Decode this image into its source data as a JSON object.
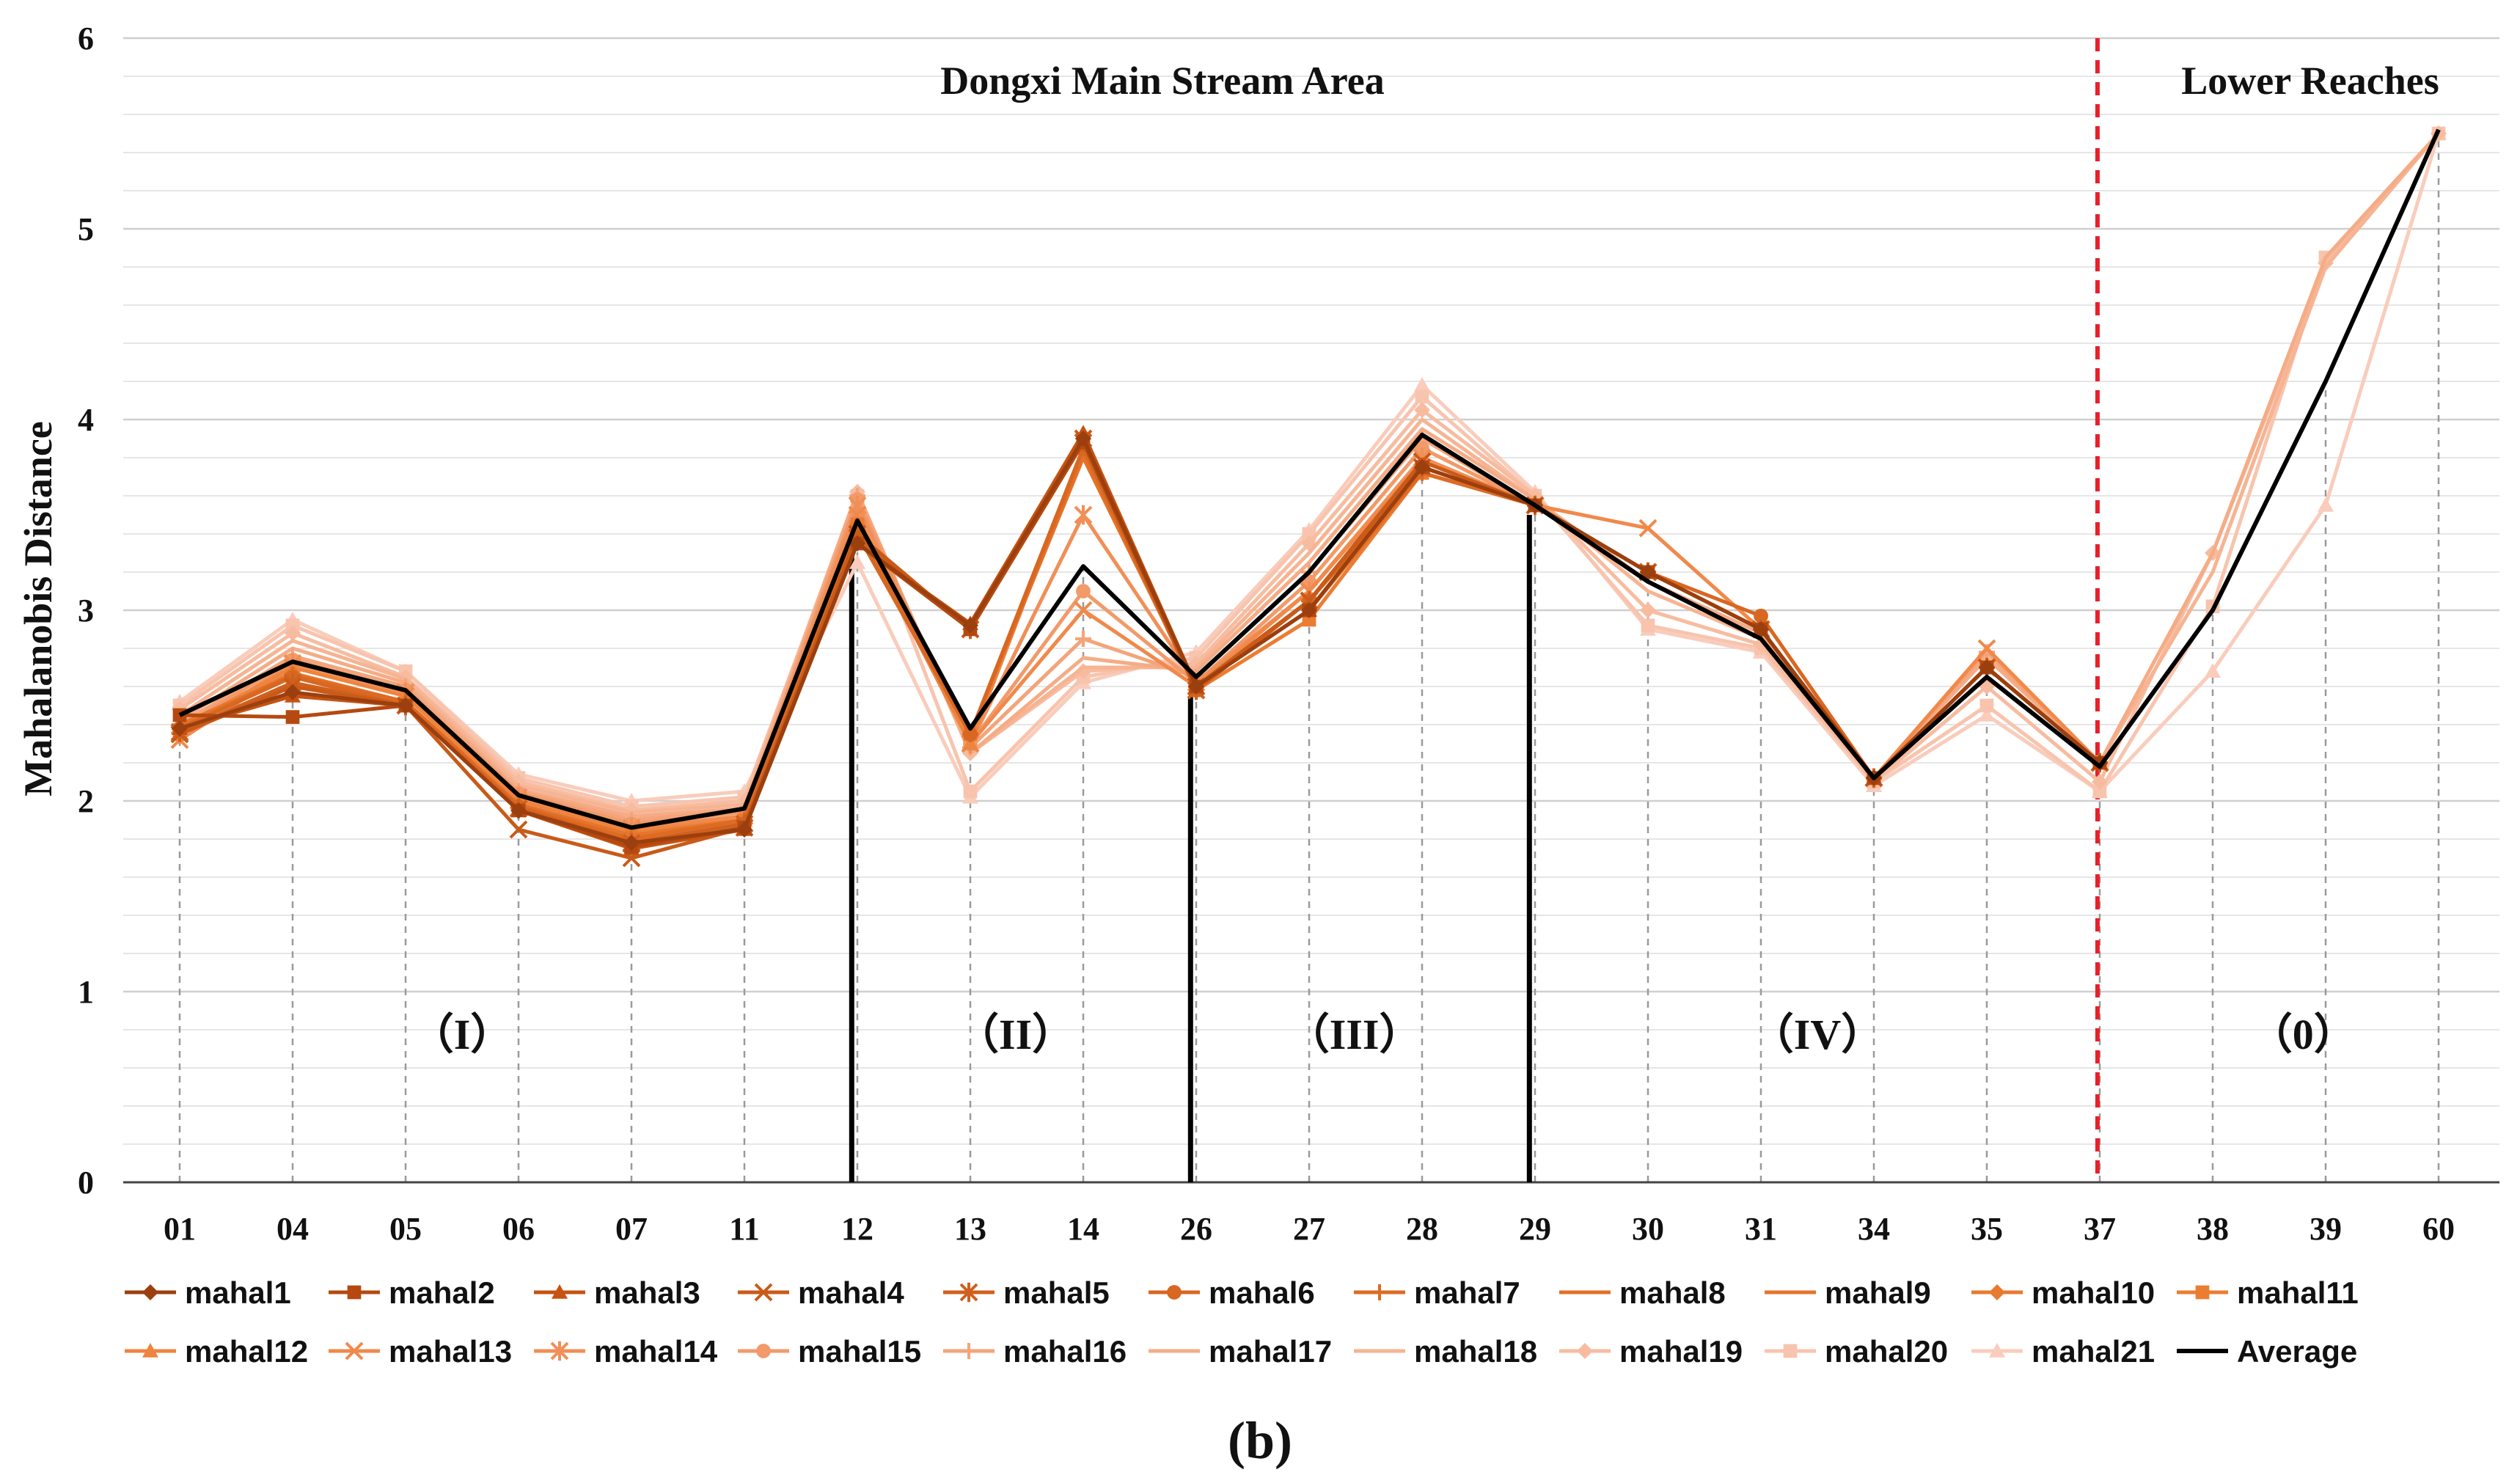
{
  "chart_data": {
    "type": "line",
    "ylabel": "Mahalanobis Distance",
    "ylim": [
      0,
      6
    ],
    "yticks": [
      "0",
      "1",
      "2",
      "3",
      "4",
      "5",
      "6"
    ],
    "categories": [
      "01",
      "04",
      "05",
      "06",
      "07",
      "11",
      "12",
      "13",
      "14",
      "26",
      "27",
      "28",
      "29",
      "30",
      "31",
      "34",
      "35",
      "37",
      "38",
      "39",
      "60"
    ],
    "region_labels": [
      "Dongxi Main Stream Area",
      "Lower Reaches"
    ],
    "zone_labels": [
      {
        "label": "（I）",
        "at": 2.5
      },
      {
        "label": "（II）",
        "at": 7.4
      },
      {
        "label": "（III）",
        "at": 10.4
      },
      {
        "label": "（IV）",
        "at": 14.5
      },
      {
        "label": "（0）",
        "at": 18.8
      }
    ],
    "dividers": [
      {
        "after_index": 6,
        "from": 0,
        "to": 3.45
      },
      {
        "after_index": 9,
        "from": 0,
        "to": 2.55
      },
      {
        "after_index": 12,
        "from": 0,
        "to": 3.5
      }
    ],
    "red_divider_after_index": 17,
    "caption": "(b)",
    "series": [
      {
        "name": "mahal1",
        "color": "#9b3f0f",
        "marker": "diamond",
        "values": [
          2.38,
          2.57,
          2.5,
          1.95,
          1.78,
          1.85,
          3.35,
          2.92,
          3.9,
          2.6,
          3.0,
          3.75,
          3.55,
          3.2,
          2.9,
          2.12,
          2.7,
          2.2,
          null,
          null,
          null
        ]
      },
      {
        "name": "mahal2",
        "color": "#b5490f",
        "marker": "square",
        "values": [
          2.45,
          2.44,
          2.5,
          1.95,
          1.76,
          1.86,
          3.35,
          2.9,
          3.88,
          2.6,
          3.0,
          3.75,
          3.55,
          3.2,
          2.9,
          2.12,
          2.7,
          2.2,
          null,
          null,
          null
        ]
      },
      {
        "name": "mahal3",
        "color": "#c65311",
        "marker": "triangle",
        "values": [
          2.38,
          2.55,
          2.5,
          1.95,
          1.75,
          1.85,
          3.35,
          2.93,
          3.93,
          2.6,
          3.0,
          3.75,
          3.55,
          3.2,
          2.9,
          2.12,
          2.7,
          2.2,
          null,
          null,
          null
        ]
      },
      {
        "name": "mahal4",
        "color": "#c95a18",
        "marker": "x",
        "values": [
          2.35,
          2.6,
          2.5,
          1.85,
          1.7,
          1.86,
          3.4,
          2.9,
          3.9,
          2.6,
          3.05,
          3.78,
          3.55,
          3.2,
          2.9,
          2.12,
          2.7,
          2.2,
          null,
          null,
          null
        ]
      },
      {
        "name": "mahal5",
        "color": "#d0601d",
        "marker": "star",
        "values": [
          2.36,
          2.62,
          2.5,
          1.96,
          1.78,
          1.88,
          3.38,
          2.9,
          3.88,
          2.58,
          3.05,
          3.75,
          3.55,
          3.2,
          2.9,
          2.12,
          2.7,
          2.2,
          null,
          null,
          null
        ]
      },
      {
        "name": "mahal6",
        "color": "#d86722",
        "marker": "circle",
        "values": [
          2.38,
          2.65,
          2.5,
          1.97,
          1.78,
          1.88,
          3.4,
          2.35,
          3.85,
          2.58,
          3.05,
          3.75,
          3.55,
          3.2,
          2.97,
          2.12,
          2.7,
          2.2,
          null,
          null,
          null
        ]
      },
      {
        "name": "mahal7",
        "color": "#dd6b24",
        "marker": "plus",
        "values": [
          2.38,
          2.66,
          2.52,
          1.97,
          1.8,
          1.9,
          3.42,
          2.35,
          3.85,
          2.6,
          3.05,
          3.72,
          3.55,
          3.2,
          2.9,
          2.12,
          2.7,
          2.2,
          null,
          null,
          null
        ]
      },
      {
        "name": "mahal8",
        "color": "#e27028",
        "marker": "none",
        "values": [
          2.38,
          2.66,
          2.52,
          1.98,
          1.8,
          1.9,
          3.42,
          2.35,
          3.82,
          2.6,
          3.0,
          3.72,
          3.55,
          3.2,
          2.9,
          2.12,
          2.7,
          2.2,
          null,
          null,
          null
        ]
      },
      {
        "name": "mahal9",
        "color": "#e5752d",
        "marker": "none",
        "values": [
          2.4,
          2.66,
          2.52,
          1.98,
          1.82,
          1.9,
          3.45,
          2.35,
          3.8,
          2.6,
          3.0,
          3.72,
          3.55,
          3.2,
          2.9,
          2.12,
          2.7,
          2.2,
          null,
          null,
          null
        ]
      },
      {
        "name": "mahal10",
        "color": "#e87a2f",
        "marker": "diamond",
        "values": [
          2.38,
          2.67,
          2.52,
          1.98,
          1.82,
          1.9,
          3.45,
          2.35,
          3.85,
          2.6,
          3.0,
          3.72,
          3.55,
          3.2,
          2.9,
          2.12,
          2.7,
          2.2,
          null,
          null,
          null
        ]
      },
      {
        "name": "mahal11",
        "color": "#eb7d32",
        "marker": "square",
        "values": [
          2.35,
          2.62,
          2.5,
          1.98,
          1.82,
          1.9,
          3.45,
          2.35,
          3.85,
          2.58,
          2.95,
          3.72,
          3.55,
          3.2,
          2.9,
          2.12,
          2.7,
          2.2,
          null,
          null,
          null
        ]
      },
      {
        "name": "mahal12",
        "color": "#ee8440",
        "marker": "triangle",
        "values": [
          2.38,
          2.7,
          2.55,
          2.0,
          1.84,
          1.9,
          3.45,
          2.3,
          3.85,
          2.6,
          3.05,
          3.75,
          3.55,
          3.2,
          2.9,
          2.12,
          2.7,
          2.2,
          null,
          null,
          null
        ]
      },
      {
        "name": "mahal13",
        "color": "#f0894b",
        "marker": "x",
        "values": [
          2.32,
          2.7,
          2.55,
          2.0,
          1.85,
          1.92,
          3.5,
          2.3,
          3.0,
          2.6,
          3.1,
          3.78,
          3.55,
          3.43,
          2.9,
          2.12,
          2.8,
          2.2,
          null,
          null,
          null
        ]
      },
      {
        "name": "mahal14",
        "color": "#f08f57",
        "marker": "star",
        "values": [
          2.35,
          2.72,
          2.57,
          2.02,
          1.86,
          1.92,
          3.55,
          2.3,
          3.5,
          2.62,
          3.1,
          3.8,
          3.55,
          3.2,
          2.9,
          2.12,
          2.7,
          2.2,
          null,
          null,
          null
        ]
      },
      {
        "name": "mahal15",
        "color": "#f29a69",
        "marker": "circle",
        "values": [
          2.38,
          2.74,
          2.58,
          2.04,
          1.88,
          1.94,
          3.58,
          2.3,
          3.1,
          2.62,
          3.15,
          3.85,
          3.55,
          3.2,
          2.9,
          2.12,
          2.7,
          2.2,
          null,
          null,
          null
        ]
      },
      {
        "name": "mahal16",
        "color": "#f4a47a",
        "marker": "plus",
        "values": [
          2.4,
          2.76,
          2.6,
          2.05,
          1.9,
          1.95,
          3.6,
          2.28,
          2.85,
          2.65,
          3.2,
          3.9,
          3.55,
          3.2,
          2.9,
          2.12,
          2.78,
          2.2,
          null,
          null,
          null
        ]
      },
      {
        "name": "mahal17",
        "color": "#f5ac86",
        "marker": "none",
        "values": [
          2.42,
          2.8,
          2.62,
          2.06,
          1.92,
          1.96,
          3.62,
          2.25,
          2.75,
          2.68,
          3.25,
          3.95,
          3.58,
          3.15,
          2.88,
          2.12,
          2.75,
          2.2,
          3.3,
          4.85,
          5.5
        ]
      },
      {
        "name": "mahal18",
        "color": "#f6b493",
        "marker": "none",
        "values": [
          2.45,
          2.84,
          2.64,
          2.08,
          1.94,
          1.98,
          3.62,
          2.25,
          2.7,
          2.7,
          3.3,
          4.0,
          3.58,
          3.1,
          2.85,
          2.12,
          2.7,
          2.2,
          3.2,
          4.8,
          5.5
        ]
      },
      {
        "name": "mahal19",
        "color": "#f7bca0",
        "marker": "diamond",
        "values": [
          2.48,
          2.88,
          2.65,
          2.1,
          1.95,
          2.0,
          3.62,
          2.25,
          2.68,
          2.72,
          3.35,
          4.05,
          3.6,
          3.0,
          2.82,
          2.1,
          2.6,
          2.1,
          3.3,
          4.82,
          5.5
        ]
      },
      {
        "name": "mahal20",
        "color": "#f8c4ae",
        "marker": "square",
        "values": [
          2.5,
          2.92,
          2.68,
          2.12,
          1.97,
          2.02,
          3.6,
          2.05,
          2.65,
          2.75,
          3.4,
          4.12,
          3.6,
          2.92,
          2.8,
          2.1,
          2.5,
          2.05,
          3.02,
          4.85,
          5.5
        ]
      },
      {
        "name": "mahal21",
        "color": "#f9ccbb",
        "marker": "triangle",
        "values": [
          2.52,
          2.95,
          2.68,
          2.14,
          2.0,
          2.05,
          3.25,
          2.02,
          2.62,
          2.78,
          3.42,
          4.18,
          3.62,
          2.9,
          2.78,
          2.08,
          2.45,
          2.05,
          2.68,
          3.55,
          5.5
        ]
      },
      {
        "name": "Average",
        "color": "#000000",
        "marker": "none",
        "values": [
          2.45,
          2.73,
          2.58,
          2.03,
          1.86,
          1.96,
          3.47,
          2.38,
          3.23,
          2.65,
          3.2,
          3.92,
          3.55,
          3.15,
          2.85,
          2.12,
          2.65,
          2.18,
          3.0,
          4.2,
          5.52
        ]
      }
    ]
  }
}
